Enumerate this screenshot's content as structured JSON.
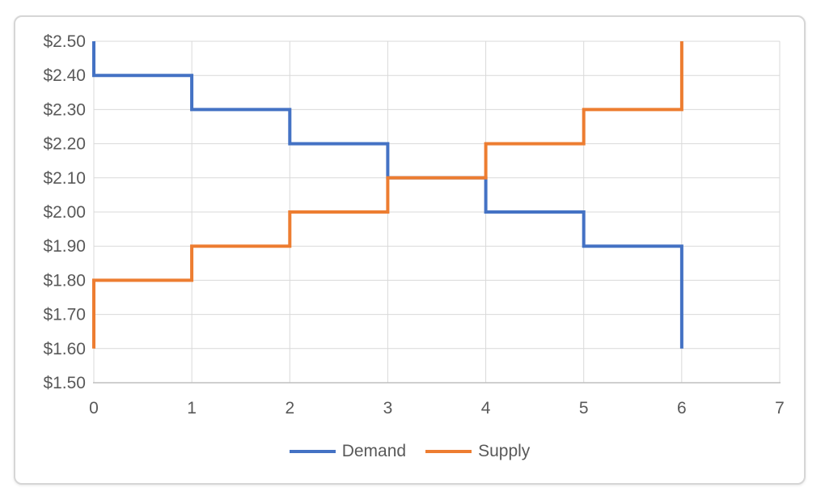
{
  "chart_data": {
    "type": "line",
    "subtype": "step",
    "title": "",
    "xlabel": "",
    "ylabel": "",
    "grid": true,
    "legend_position": "bottom",
    "x_axis": {
      "min": 0,
      "max": 7,
      "tick_values": [
        0,
        1,
        2,
        3,
        4,
        5,
        6,
        7
      ],
      "tick_labels": [
        "0",
        "1",
        "2",
        "3",
        "4",
        "5",
        "6",
        "7"
      ]
    },
    "y_axis": {
      "min": 1.5,
      "max": 2.5,
      "tick_values": [
        1.5,
        1.6,
        1.7,
        1.8,
        1.9,
        2.0,
        2.1,
        2.2,
        2.3,
        2.4,
        2.5
      ],
      "tick_labels": [
        "$1.50",
        "$1.60",
        "$1.70",
        "$1.80",
        "$1.90",
        "$2.00",
        "$2.10",
        "$2.20",
        "$2.30",
        "$2.40",
        "$2.50"
      ]
    },
    "series": [
      {
        "name": "Demand",
        "color": "#4472C4",
        "points": [
          [
            0,
            2.5
          ],
          [
            0,
            2.4
          ],
          [
            1,
            2.4
          ],
          [
            1,
            2.3
          ],
          [
            2,
            2.3
          ],
          [
            2,
            2.2
          ],
          [
            3,
            2.2
          ],
          [
            3,
            2.1
          ],
          [
            4,
            2.1
          ],
          [
            4,
            2.0
          ],
          [
            5,
            2.0
          ],
          [
            5,
            1.9
          ],
          [
            6,
            1.9
          ],
          [
            6,
            1.6
          ]
        ]
      },
      {
        "name": "Supply",
        "color": "#ED7D31",
        "points": [
          [
            0,
            1.6
          ],
          [
            0,
            1.8
          ],
          [
            1,
            1.8
          ],
          [
            1,
            1.9
          ],
          [
            2,
            1.9
          ],
          [
            2,
            2.0
          ],
          [
            3,
            2.0
          ],
          [
            3,
            2.1
          ],
          [
            4,
            2.1
          ],
          [
            4,
            2.2
          ],
          [
            5,
            2.2
          ],
          [
            5,
            2.3
          ],
          [
            6,
            2.3
          ],
          [
            6,
            2.5
          ]
        ]
      }
    ]
  },
  "style": {
    "grid_color": "#D9D9D9",
    "axis_line_color": "#BFBFBF",
    "text_color": "#595959",
    "frame_border_color": "#D6D6D6",
    "line_width": 4
  }
}
